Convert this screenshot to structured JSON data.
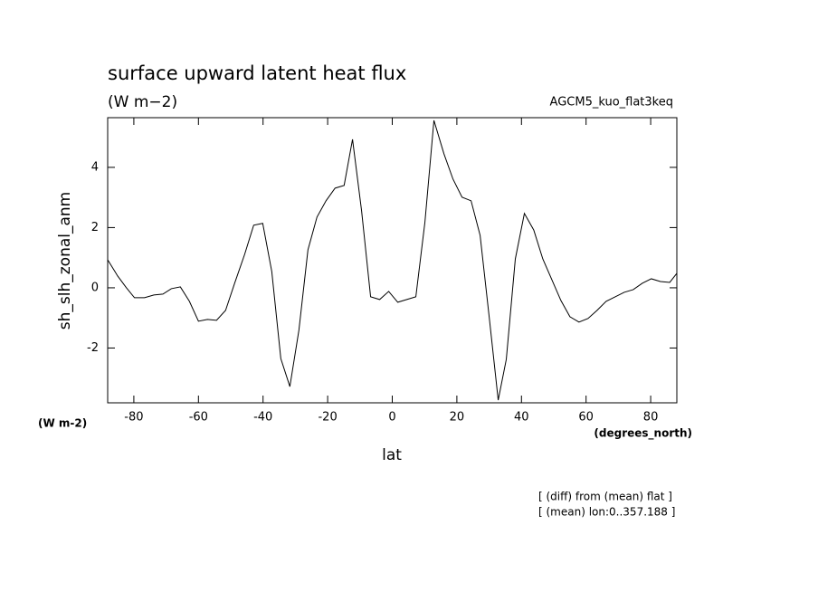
{
  "chart_data": {
    "type": "line",
    "title": "surface upward latent heat flux",
    "subtitle": "(W m−2)",
    "experiment": "AGCM5_kuo_flat3keq",
    "y_label": "sh_slh_zonal_anm",
    "y_units": "(W m-2)",
    "x_label": "lat",
    "x_units": "(degrees_north)",
    "notes": [
      "[ (diff) from (mean) flat ]",
      "[ (mean) lon:0..357.188 ]"
    ],
    "xlim": [
      -88.1,
      88.1
    ],
    "ylim": [
      -3.82,
      5.65
    ],
    "xticks": [
      -80,
      -60,
      -40,
      -20,
      0,
      20,
      40,
      60,
      80
    ],
    "yticks": [
      -2,
      0,
      2,
      4
    ],
    "color": "#000000",
    "x": [
      -88.1,
      -85,
      -82.3,
      -79.8,
      -76.7,
      -73.8,
      -71,
      -68.4,
      -65.6,
      -62.8,
      -60,
      -57.2,
      -54.4,
      -51.6,
      -48.8,
      -45.7,
      -42.9,
      -40.1,
      -37.3,
      -34.5,
      -31.7,
      -28.9,
      -26.1,
      -23.3,
      -20.5,
      -17.7,
      -14.9,
      -12.3,
      -9.5,
      -6.7,
      -3.9,
      -1.1,
      1.7,
      4.5,
      7.3,
      10.1,
      12.9,
      16,
      18.8,
      21.6,
      24.4,
      27.2,
      30,
      32.8,
      35.3,
      38.1,
      40.9,
      43.8,
      46.6,
      49.4,
      52.2,
      55,
      57.8,
      60.6,
      63.4,
      66.2,
      69,
      71.8,
      74.6,
      77.4,
      80.2,
      83,
      85.9,
      88.1
    ],
    "values": [
      0.93,
      0.39,
      0,
      -0.33,
      -0.33,
      -0.24,
      -0.21,
      -0.03,
      0.03,
      -0.45,
      -1.11,
      -1.05,
      -1.08,
      -0.75,
      0.15,
      1.11,
      2.08,
      2.14,
      0.54,
      -2.35,
      -3.28,
      -1.41,
      1.26,
      2.35,
      2.89,
      3.31,
      3.4,
      4.93,
      2.56,
      -0.3,
      -0.39,
      -0.12,
      -0.48,
      -0.39,
      -0.3,
      2.17,
      5.56,
      4.45,
      3.61,
      3.01,
      2.89,
      1.74,
      -0.96,
      -3.73,
      -2.38,
      0.96,
      2.47,
      1.92,
      0.96,
      0.27,
      -0.42,
      -0.96,
      -1.14,
      -1.02,
      -0.75,
      -0.45,
      -0.3,
      -0.15,
      -0.06,
      0.15,
      0.3,
      0.21,
      0.18,
      0.48
    ]
  }
}
